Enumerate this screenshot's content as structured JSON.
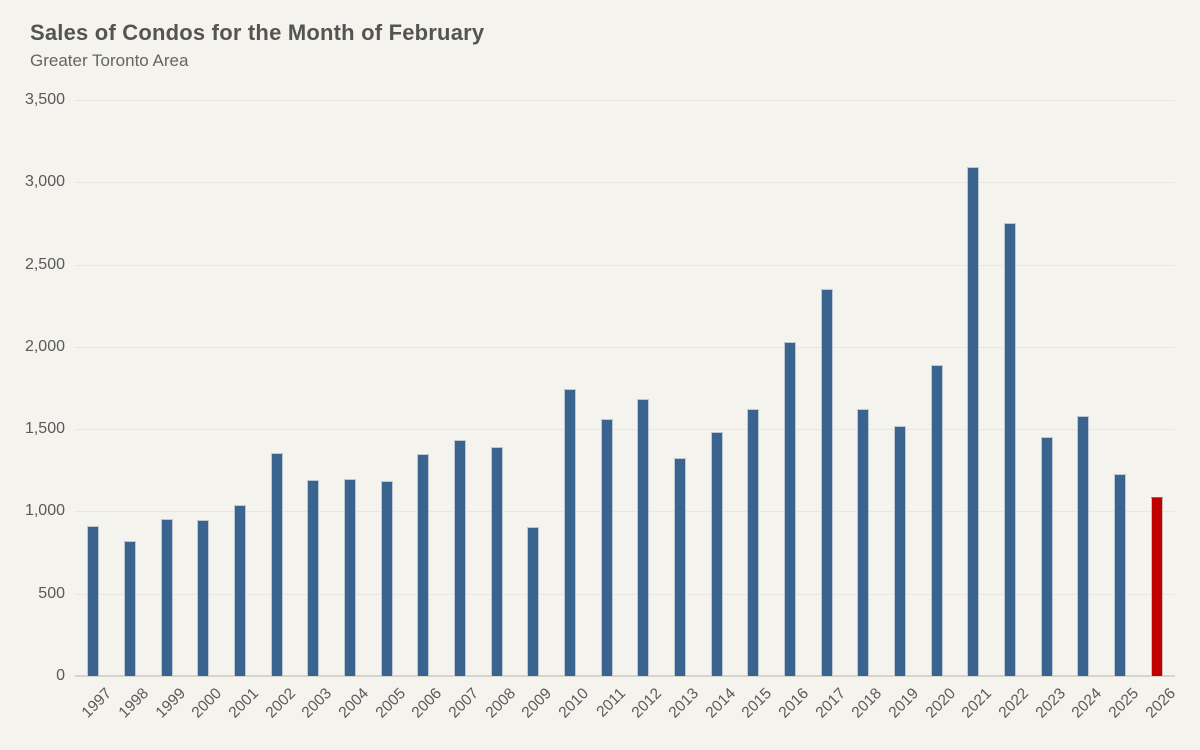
{
  "header": {
    "title": "Sales of Condos for the Month of February",
    "subtitle": "Greater Toronto Area"
  },
  "chart_data": {
    "type": "bar",
    "title": "Sales of Condos for the Month of February",
    "subtitle": "Greater Toronto Area",
    "categories": [
      "1997",
      "1998",
      "1999",
      "2000",
      "2001",
      "2002",
      "2003",
      "2004",
      "2005",
      "2006",
      "2007",
      "2008",
      "2009",
      "2010",
      "2011",
      "2012",
      "2013",
      "2014",
      "2015",
      "2016",
      "2017",
      "2018",
      "2019",
      "2020",
      "2021",
      "2022",
      "2023",
      "2024",
      "2025",
      "2026"
    ],
    "values": [
      910,
      820,
      955,
      945,
      1040,
      1355,
      1190,
      1195,
      1185,
      1350,
      1435,
      1390,
      905,
      1745,
      1560,
      1685,
      1325,
      1480,
      1620,
      2030,
      2350,
      1625,
      1520,
      1890,
      3095,
      2755,
      1450,
      1580,
      1225,
      1090
    ],
    "xlabel": "",
    "ylabel": "",
    "ylim": [
      0,
      3500
    ],
    "ytick_step": 500,
    "ytick_labels": [
      "0",
      "500",
      "1,000",
      "1,500",
      "2,000",
      "2,500",
      "3,000",
      "3,500"
    ],
    "grid": true,
    "legend_position": "none",
    "bar_color": "#3a648f",
    "highlight_category": "2026",
    "highlight_color": "#c00000",
    "background_color": "#f5f3ee",
    "gridline_color": "#e9e6e1",
    "axis_line_color": "#d7d4ce",
    "text_color": "#595959"
  }
}
